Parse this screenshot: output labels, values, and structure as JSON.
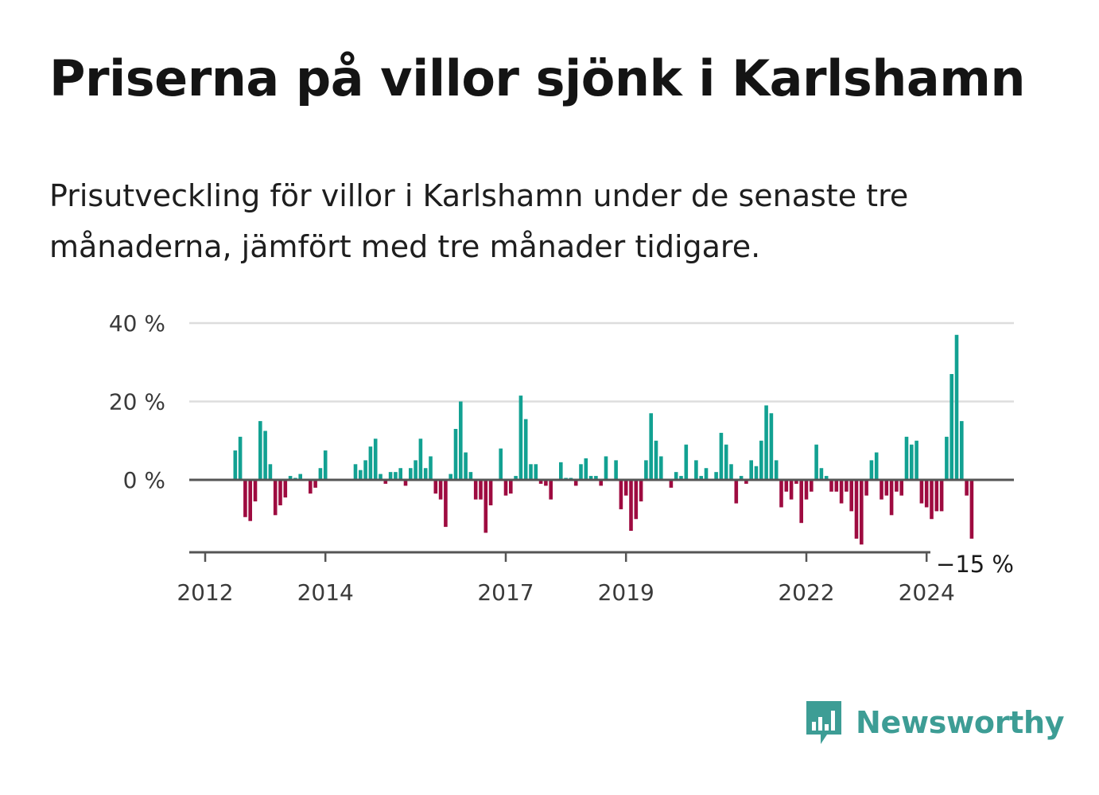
{
  "title": "Priserna på villor sjönk i Karlshamn",
  "subtitle": "Prisutveckling för villor i Karlshamn under de senaste tre månaderna, jämfört med tre månader tidigare.",
  "brand": {
    "name": "Newsworthy",
    "icon": "newsworthy-logo-icon",
    "color": "#3d9d95"
  },
  "colors": {
    "positive": "#12a192",
    "negative": "#9e0b40",
    "grid": "#dddddd",
    "axis": "#555555"
  },
  "chart_data": {
    "type": "bar",
    "ylabel": "",
    "xlabel": "",
    "ylim": [
      -18,
      42
    ],
    "yticks": [
      0,
      20,
      40
    ],
    "ytick_labels": [
      "0 %",
      "20 %",
      "40 %"
    ],
    "xtick_labels": [
      "2012",
      "2014",
      "2017",
      "2019",
      "2022",
      "2024"
    ],
    "xtick_dates": [
      "2012-01",
      "2014-01",
      "2017-01",
      "2019-01",
      "2022-01",
      "2024-01"
    ],
    "grid": true,
    "start": "2012-01",
    "end_label": "−15 %",
    "values": [
      null,
      null,
      null,
      null,
      null,
      null,
      7.5,
      11,
      -9.5,
      -10.5,
      -5.5,
      15,
      12.5,
      4,
      -9,
      -6.5,
      -4.5,
      1,
      0.5,
      1.5,
      0.2,
      -3.5,
      -2,
      3,
      7.5,
      null,
      null,
      null,
      null,
      null,
      4,
      2.5,
      5,
      8.5,
      10.5,
      1.5,
      -1,
      2,
      2,
      3,
      -1.5,
      3,
      5,
      10.5,
      3,
      6,
      -3.5,
      -5,
      -12,
      1.5,
      13,
      20,
      7,
      2,
      -5,
      -5,
      -13.5,
      -6.5,
      null,
      8,
      -4,
      -3.5,
      1,
      21.5,
      15.5,
      4,
      4,
      -1,
      -1.5,
      -5,
      null,
      4.5,
      0.5,
      0.5,
      -1.5,
      4,
      5.5,
      1,
      1,
      -1.5,
      6,
      null,
      5,
      -7.5,
      -4,
      -13,
      -10,
      -5.5,
      5,
      17,
      10,
      6,
      null,
      -2,
      2,
      1,
      9,
      null,
      5,
      1,
      3,
      null,
      2,
      12,
      9,
      4,
      -6,
      1,
      -1,
      5,
      3.5,
      10,
      19,
      17,
      5,
      -7,
      -3,
      -5,
      -1,
      -11,
      -5,
      -3,
      9,
      3,
      1,
      -3,
      -3,
      -6,
      -3,
      -8,
      -15,
      -16.5,
      -4,
      5,
      7,
      -5,
      -4,
      -9,
      -3,
      -4,
      11,
      9,
      10,
      -6,
      -7,
      -10,
      -8,
      -8,
      11,
      27,
      37,
      15,
      -4,
      -15
    ]
  }
}
